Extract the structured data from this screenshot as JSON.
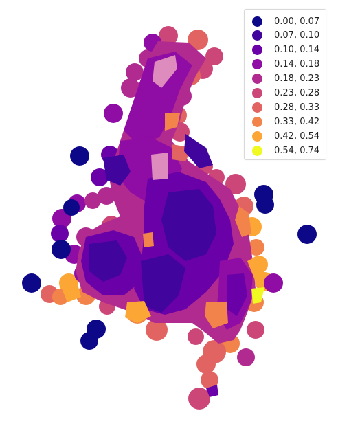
{
  "legend": {
    "entries": [
      {
        "label": "0.00, 0.07",
        "color": "#0d0887"
      },
      {
        "label": "0.07, 0.10",
        "color": "#41049d"
      },
      {
        "label": "0.10, 0.14",
        "color": "#6a00a8"
      },
      {
        "label": "0.14, 0.18",
        "color": "#8f0da4"
      },
      {
        "label": "0.18, 0.23",
        "color": "#b12a90"
      },
      {
        "label": "0.23, 0.28",
        "color": "#cc4778"
      },
      {
        "label": "0.28, 0.33",
        "color": "#e16462"
      },
      {
        "label": "0.33, 0.42",
        "color": "#f2844b"
      },
      {
        "label": "0.42, 0.54",
        "color": "#fca636"
      },
      {
        "label": "0.54, 0.74",
        "color": "#f0f921"
      }
    ]
  },
  "colors": {
    "c0": "#0d0887",
    "c1": "#41049d",
    "c2": "#6a00a8",
    "c3": "#8f0da4",
    "c4": "#b12a90",
    "c5": "#cc4778",
    "c6": "#e16462",
    "c7": "#f2844b",
    "c8": "#fca636",
    "c9": "#f0f921",
    "highlight": "#de8cbe"
  }
}
